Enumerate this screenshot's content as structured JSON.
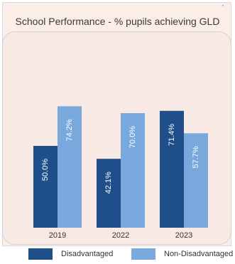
{
  "colors": {
    "disadvantaged": "#1f4f8a",
    "non_disadvantaged": "#79a8dc"
  },
  "chart_data": {
    "type": "bar",
    "title": "School Performance - % pupils achieving GLD",
    "categories": [
      "2019",
      "2022",
      "2023"
    ],
    "series": [
      {
        "name": "Disadvantaged",
        "values": [
          50.0,
          42.1,
          71.4
        ],
        "labels": [
          "50.0%",
          "42.1%",
          "71.4%"
        ]
      },
      {
        "name": "Non-Disadvantaged",
        "values": [
          74.2,
          70.0,
          57.7
        ],
        "labels": [
          "74.2%",
          "70.0%",
          "57.7%"
        ]
      }
    ],
    "ylim": [
      0,
      100
    ],
    "grid": false,
    "legend_position": "bottom"
  }
}
